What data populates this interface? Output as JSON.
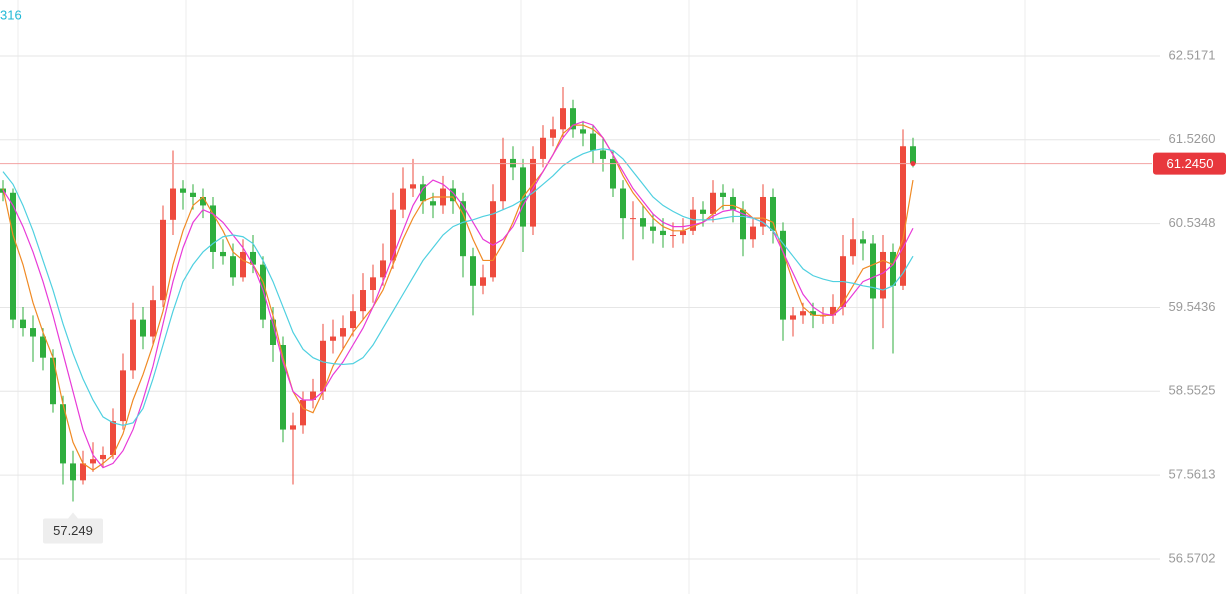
{
  "chart_data": {
    "type": "candlestick",
    "ma_label": "316",
    "up_color": "#ee4b3d",
    "down_color": "#2fae3e",
    "ylim": [
      56.156,
      63.179
    ],
    "yticks": [
      56.5702,
      57.5613,
      58.5525,
      59.5436,
      60.5348,
      {
        "value": 61.526,
        "label": "61.5260"
      },
      62.5171
    ],
    "grid": true,
    "last_price": {
      "value": 61.245,
      "label": "61.2450"
    },
    "low_marker": 57.249,
    "candles": [
      [
        60.95,
        61.05,
        60.8,
        60.9
      ],
      [
        60.9,
        60.95,
        59.3,
        59.4
      ],
      [
        59.4,
        59.55,
        59.2,
        59.3
      ],
      [
        59.3,
        59.45,
        58.9,
        59.2
      ],
      [
        59.2,
        59.3,
        58.8,
        58.95
      ],
      [
        58.95,
        59.05,
        58.3,
        58.4
      ],
      [
        58.4,
        58.5,
        57.45,
        57.7
      ],
      [
        57.7,
        57.85,
        57.249,
        57.5
      ],
      [
        57.5,
        57.85,
        57.45,
        57.7
      ],
      [
        57.7,
        57.95,
        57.6,
        57.75
      ],
      [
        57.75,
        57.9,
        57.65,
        57.8
      ],
      [
        57.8,
        58.35,
        57.75,
        58.2
      ],
      [
        58.2,
        59.0,
        58.1,
        58.8
      ],
      [
        58.8,
        59.6,
        58.7,
        59.4
      ],
      [
        59.4,
        59.55,
        59.05,
        59.2
      ],
      [
        59.2,
        59.8,
        59.1,
        59.63
      ],
      [
        59.63,
        60.75,
        59.55,
        60.58
      ],
      [
        60.58,
        61.4,
        60.4,
        60.95
      ],
      [
        60.95,
        61.05,
        60.7,
        60.9
      ],
      [
        60.9,
        61.0,
        60.7,
        60.85
      ],
      [
        60.85,
        60.95,
        60.6,
        60.75
      ],
      [
        60.75,
        60.85,
        60.0,
        60.2
      ],
      [
        60.2,
        60.35,
        60.05,
        60.15
      ],
      [
        60.15,
        60.3,
        59.8,
        59.9
      ],
      [
        59.9,
        60.35,
        59.85,
        60.2
      ],
      [
        60.2,
        60.4,
        59.95,
        60.05
      ],
      [
        60.05,
        60.15,
        59.3,
        59.4
      ],
      [
        59.4,
        59.55,
        58.9,
        59.1
      ],
      [
        59.1,
        59.2,
        57.95,
        58.1
      ],
      [
        58.1,
        58.3,
        57.45,
        58.15
      ],
      [
        58.15,
        58.55,
        58.05,
        58.45
      ],
      [
        58.45,
        58.7,
        58.35,
        58.55
      ],
      [
        58.55,
        59.35,
        58.45,
        59.15
      ],
      [
        59.15,
        59.4,
        59.0,
        59.2
      ],
      [
        59.2,
        59.45,
        59.05,
        59.3
      ],
      [
        59.3,
        59.7,
        59.2,
        59.5
      ],
      [
        59.5,
        59.95,
        59.4,
        59.75
      ],
      [
        59.75,
        60.05,
        59.6,
        59.9
      ],
      [
        59.9,
        60.3,
        59.8,
        60.1
      ],
      [
        60.1,
        60.9,
        60.0,
        60.7
      ],
      [
        60.7,
        61.2,
        60.6,
        60.95
      ],
      [
        60.95,
        61.3,
        60.85,
        61.0
      ],
      [
        61.0,
        61.1,
        60.65,
        60.8
      ],
      [
        60.8,
        60.9,
        60.6,
        60.75
      ],
      [
        60.75,
        61.1,
        60.65,
        60.95
      ],
      [
        60.95,
        61.05,
        60.65,
        60.8
      ],
      [
        60.8,
        60.9,
        59.9,
        60.15
      ],
      [
        60.15,
        60.25,
        59.45,
        59.8
      ],
      [
        59.8,
        60.05,
        59.7,
        59.9
      ],
      [
        59.9,
        61.0,
        59.85,
        60.8
      ],
      [
        60.8,
        61.55,
        60.7,
        61.3
      ],
      [
        61.3,
        61.45,
        61.05,
        61.2
      ],
      [
        61.2,
        61.3,
        60.2,
        60.5
      ],
      [
        60.5,
        61.45,
        60.4,
        61.3
      ],
      [
        61.3,
        61.7,
        61.2,
        61.55
      ],
      [
        61.55,
        61.8,
        61.45,
        61.65
      ],
      [
        61.65,
        62.15,
        61.55,
        61.9
      ],
      [
        61.9,
        62.0,
        61.55,
        61.65
      ],
      [
        61.65,
        61.75,
        61.45,
        61.6
      ],
      [
        61.6,
        61.7,
        61.25,
        61.4
      ],
      [
        61.4,
        61.55,
        61.15,
        61.3
      ],
      [
        61.3,
        61.4,
        60.85,
        60.95
      ],
      [
        60.95,
        61.05,
        60.35,
        60.6
      ],
      [
        60.6,
        60.8,
        60.1,
        60.6
      ],
      [
        60.6,
        60.75,
        60.35,
        60.5
      ],
      [
        60.5,
        60.65,
        60.3,
        60.45
      ],
      [
        60.45,
        60.6,
        60.25,
        60.4
      ],
      [
        60.4,
        60.55,
        60.25,
        60.4
      ],
      [
        60.4,
        60.6,
        60.3,
        60.45
      ],
      [
        60.45,
        60.85,
        60.4,
        60.7
      ],
      [
        60.7,
        60.8,
        60.5,
        60.65
      ],
      [
        60.65,
        61.05,
        60.55,
        60.9
      ],
      [
        60.9,
        61.0,
        60.7,
        60.85
      ],
      [
        60.85,
        60.95,
        60.55,
        60.7
      ],
      [
        60.7,
        60.8,
        60.15,
        60.35
      ],
      [
        60.35,
        60.6,
        60.25,
        60.5
      ],
      [
        60.5,
        61.0,
        60.4,
        60.85
      ],
      [
        60.85,
        60.95,
        60.3,
        60.45
      ],
      [
        60.45,
        60.55,
        59.15,
        59.4
      ],
      [
        59.4,
        59.55,
        59.2,
        59.45
      ],
      [
        59.45,
        59.6,
        59.35,
        59.5
      ],
      [
        59.5,
        59.6,
        59.3,
        59.45
      ],
      [
        59.45,
        59.55,
        59.35,
        59.45
      ],
      [
        59.45,
        59.7,
        59.35,
        59.55
      ],
      [
        59.55,
        60.4,
        59.45,
        60.15
      ],
      [
        60.15,
        60.6,
        60.05,
        60.35
      ],
      [
        60.35,
        60.45,
        60.1,
        60.3
      ],
      [
        60.3,
        60.4,
        59.05,
        59.65
      ],
      [
        59.65,
        60.4,
        59.3,
        60.2
      ],
      [
        60.2,
        60.3,
        59.0,
        59.8
      ],
      [
        59.8,
        61.65,
        59.75,
        61.45
      ],
      [
        61.45,
        61.55,
        61.2,
        61.245
      ]
    ],
    "series": [
      {
        "color": "#f08a24",
        "values": [
          60.95,
          60.4,
          60.05,
          59.6,
          59.25,
          58.95,
          58.4,
          57.95,
          57.7,
          57.62,
          57.7,
          57.8,
          58.05,
          58.45,
          58.75,
          59.1,
          59.5,
          60.05,
          60.45,
          60.75,
          60.85,
          60.65,
          60.45,
          60.2,
          60.1,
          60.05,
          59.85,
          59.45,
          58.95,
          58.55,
          58.35,
          58.3,
          58.55,
          58.85,
          59.05,
          59.25,
          59.4,
          59.55,
          59.75,
          60.05,
          60.35,
          60.6,
          60.8,
          60.85,
          60.85,
          60.85,
          60.65,
          60.35,
          60.1,
          60.1,
          60.3,
          60.55,
          60.85,
          61.0,
          61.15,
          61.35,
          61.6,
          61.7,
          61.7,
          61.65,
          61.55,
          61.35,
          61.1,
          60.9,
          60.75,
          60.6,
          60.5,
          60.45,
          60.45,
          60.5,
          60.55,
          60.65,
          60.75,
          60.75,
          60.7,
          60.6,
          60.6,
          60.55,
          60.2,
          59.85,
          59.55,
          59.45,
          59.45,
          59.45,
          59.6,
          59.8,
          60.0,
          60.05,
          60.1,
          60.05,
          60.35,
          61.05
        ]
      },
      {
        "color": "#e83ad8",
        "values": [
          60.93,
          60.75,
          60.5,
          60.2,
          59.85,
          59.45,
          59.0,
          58.55,
          58.1,
          57.8,
          57.65,
          57.7,
          57.85,
          58.1,
          58.45,
          58.85,
          59.35,
          59.85,
          60.25,
          60.55,
          60.7,
          60.65,
          60.55,
          60.4,
          60.25,
          60.05,
          59.75,
          59.35,
          58.9,
          58.55,
          58.45,
          58.45,
          58.55,
          58.75,
          58.9,
          59.1,
          59.3,
          59.55,
          59.85,
          60.15,
          60.45,
          60.75,
          60.95,
          61.05,
          61.0,
          60.9,
          60.75,
          60.55,
          60.35,
          60.28,
          60.35,
          60.5,
          60.75,
          60.95,
          61.15,
          61.35,
          61.55,
          61.7,
          61.74,
          61.7,
          61.55,
          61.35,
          61.15,
          60.95,
          60.8,
          60.65,
          60.55,
          60.5,
          60.5,
          60.52,
          60.55,
          60.62,
          60.68,
          60.7,
          60.65,
          60.6,
          60.55,
          60.45,
          60.2,
          59.95,
          59.7,
          59.55,
          59.47,
          59.45,
          59.55,
          59.7,
          59.85,
          59.9,
          59.95,
          60.05,
          60.25,
          60.48
        ]
      },
      {
        "color": "#4fd0e0",
        "values": [
          61.15,
          61.0,
          60.75,
          60.45,
          60.1,
          59.75,
          59.35,
          59.0,
          58.7,
          58.45,
          58.25,
          58.18,
          58.15,
          58.18,
          58.35,
          58.7,
          59.1,
          59.5,
          59.85,
          60.05,
          60.2,
          60.3,
          60.38,
          60.4,
          60.38,
          60.3,
          60.1,
          59.85,
          59.55,
          59.25,
          59.05,
          58.95,
          58.9,
          58.88,
          58.87,
          58.88,
          58.95,
          59.1,
          59.3,
          59.5,
          59.7,
          59.9,
          60.1,
          60.25,
          60.4,
          60.5,
          60.55,
          60.58,
          60.62,
          60.65,
          60.7,
          60.75,
          60.82,
          60.9,
          61.0,
          61.1,
          61.22,
          61.3,
          61.36,
          61.4,
          61.42,
          61.4,
          61.3,
          61.15,
          61.0,
          60.85,
          60.75,
          60.68,
          60.62,
          60.58,
          60.58,
          60.58,
          60.6,
          60.62,
          60.62,
          60.6,
          60.55,
          60.45,
          60.3,
          60.15,
          60.0,
          59.92,
          59.88,
          59.85,
          59.85,
          59.83,
          59.8,
          59.78,
          59.75,
          59.8,
          59.95,
          60.15
        ]
      }
    ]
  }
}
